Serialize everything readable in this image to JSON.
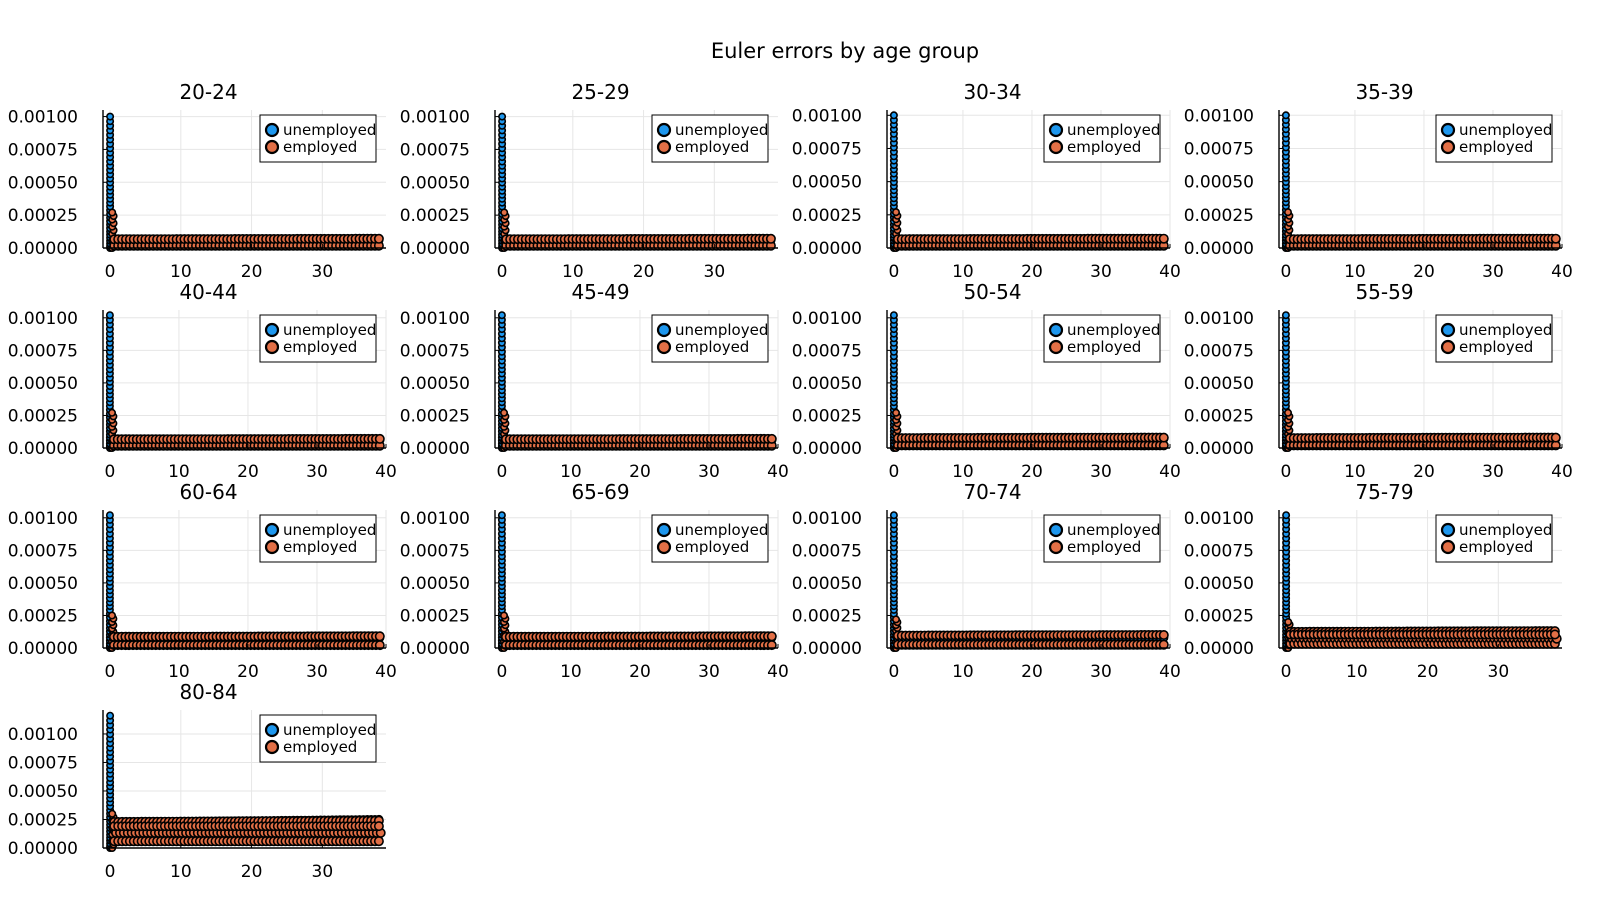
{
  "figure": {
    "title": "Euler errors by age group"
  },
  "colors": {
    "unemployed": "#1e97ee",
    "employed": "#e26f46",
    "axis": "#000000",
    "grid": "#e6e6e6"
  },
  "chart_data": [
    {
      "type": "scatter",
      "title": "20-24",
      "xlim": [
        -1,
        39
      ],
      "xticks": [
        0,
        10,
        20,
        30
      ],
      "ylim": [
        0,
        0.00105
      ],
      "yticks": [
        0,
        0.00025,
        0.0005,
        0.00075,
        0.001
      ],
      "ytick_labels": [
        "0.00000",
        "0.00025",
        "0.00050",
        "0.00075",
        "0.00100"
      ],
      "legend": {
        "position": "top-right",
        "entries": [
          "unemployed",
          "employed"
        ]
      },
      "grid": true,
      "series": [
        {
          "name": "unemployed",
          "x_range": [
            0,
            38.5
          ],
          "near_zero_peak": 0.001,
          "tail_value": 6e-05
        },
        {
          "name": "employed",
          "x_range": [
            0,
            38.5
          ],
          "near_zero_peak": 0.00027,
          "tail_value": 7e-05
        }
      ]
    },
    {
      "type": "scatter",
      "title": "25-29",
      "xlim": [
        -1,
        39
      ],
      "xticks": [
        0,
        10,
        20,
        30
      ],
      "ylim": [
        0,
        0.00105
      ],
      "yticks": [
        0,
        0.00025,
        0.0005,
        0.00075,
        0.001
      ],
      "ytick_labels": [
        "0.00000",
        "0.00025",
        "0.00050",
        "0.00075",
        "0.00100"
      ],
      "legend": {
        "position": "top-right",
        "entries": [
          "unemployed",
          "employed"
        ]
      },
      "grid": true,
      "series": [
        {
          "name": "unemployed",
          "x_range": [
            0,
            38.5
          ],
          "near_zero_peak": 0.001,
          "tail_value": 6e-05
        },
        {
          "name": "employed",
          "x_range": [
            0,
            38.5
          ],
          "near_zero_peak": 0.00027,
          "tail_value": 7e-05
        }
      ]
    },
    {
      "type": "scatter",
      "title": "30-34",
      "xlim": [
        -1,
        40
      ],
      "xticks": [
        0,
        10,
        20,
        30,
        40
      ],
      "ylim": [
        0,
        0.00104
      ],
      "yticks": [
        0,
        0.00025,
        0.0005,
        0.00075,
        0.001
      ],
      "ytick_labels": [
        "0.00000",
        "0.00025",
        "0.00050",
        "0.00075",
        "0.00100"
      ],
      "legend": {
        "position": "top-right",
        "entries": [
          "unemployed",
          "employed"
        ]
      },
      "grid": true,
      "series": [
        {
          "name": "unemployed",
          "x_range": [
            0,
            39.5
          ],
          "near_zero_peak": 0.001,
          "tail_value": 6e-05
        },
        {
          "name": "employed",
          "x_range": [
            0,
            39.5
          ],
          "near_zero_peak": 0.00027,
          "tail_value": 7e-05
        }
      ]
    },
    {
      "type": "scatter",
      "title": "35-39",
      "xlim": [
        -1,
        40
      ],
      "xticks": [
        0,
        10,
        20,
        30,
        40
      ],
      "ylim": [
        0,
        0.00104
      ],
      "yticks": [
        0,
        0.00025,
        0.0005,
        0.00075,
        0.001
      ],
      "ytick_labels": [
        "0.00000",
        "0.00025",
        "0.00050",
        "0.00075",
        "0.00100"
      ],
      "legend": {
        "position": "top-right",
        "entries": [
          "unemployed",
          "employed"
        ]
      },
      "grid": true,
      "series": [
        {
          "name": "unemployed",
          "x_range": [
            0,
            39.5
          ],
          "near_zero_peak": 0.001,
          "tail_value": 6e-05
        },
        {
          "name": "employed",
          "x_range": [
            0,
            39.5
          ],
          "near_zero_peak": 0.00027,
          "tail_value": 7e-05
        }
      ]
    },
    {
      "type": "scatter",
      "title": "40-44",
      "xlim": [
        -1,
        40
      ],
      "xticks": [
        0,
        10,
        20,
        30,
        40
      ],
      "ylim": [
        0,
        0.00106
      ],
      "yticks": [
        0,
        0.00025,
        0.0005,
        0.00075,
        0.001
      ],
      "ytick_labels": [
        "0.00000",
        "0.00025",
        "0.00050",
        "0.00075",
        "0.00100"
      ],
      "legend": {
        "position": "top-right",
        "entries": [
          "unemployed",
          "employed"
        ]
      },
      "grid": true,
      "series": [
        {
          "name": "unemployed",
          "x_range": [
            0,
            39.5
          ],
          "near_zero_peak": 0.00102,
          "tail_value": 6e-05
        },
        {
          "name": "employed",
          "x_range": [
            0,
            39.5
          ],
          "near_zero_peak": 0.00027,
          "tail_value": 7e-05
        }
      ]
    },
    {
      "type": "scatter",
      "title": "45-49",
      "xlim": [
        -1,
        40
      ],
      "xticks": [
        0,
        10,
        20,
        30,
        40
      ],
      "ylim": [
        0,
        0.00106
      ],
      "yticks": [
        0,
        0.00025,
        0.0005,
        0.00075,
        0.001
      ],
      "ytick_labels": [
        "0.00000",
        "0.00025",
        "0.00050",
        "0.00075",
        "0.00100"
      ],
      "legend": {
        "position": "top-right",
        "entries": [
          "unemployed",
          "employed"
        ]
      },
      "grid": true,
      "series": [
        {
          "name": "unemployed",
          "x_range": [
            0,
            39.5
          ],
          "near_zero_peak": 0.00102,
          "tail_value": 6e-05
        },
        {
          "name": "employed",
          "x_range": [
            0,
            39.5
          ],
          "near_zero_peak": 0.00027,
          "tail_value": 7e-05
        }
      ]
    },
    {
      "type": "scatter",
      "title": "50-54",
      "xlim": [
        -1,
        40
      ],
      "xticks": [
        0,
        10,
        20,
        30,
        40
      ],
      "ylim": [
        0,
        0.00106
      ],
      "yticks": [
        0,
        0.00025,
        0.0005,
        0.00075,
        0.001
      ],
      "ytick_labels": [
        "0.00000",
        "0.00025",
        "0.00050",
        "0.00075",
        "0.00100"
      ],
      "legend": {
        "position": "top-right",
        "entries": [
          "unemployed",
          "employed"
        ]
      },
      "grid": true,
      "series": [
        {
          "name": "unemployed",
          "x_range": [
            0,
            39.5
          ],
          "near_zero_peak": 0.00102,
          "tail_value": 7e-05
        },
        {
          "name": "employed",
          "x_range": [
            0,
            39.5
          ],
          "near_zero_peak": 0.00027,
          "tail_value": 8e-05
        }
      ]
    },
    {
      "type": "scatter",
      "title": "55-59",
      "xlim": [
        -1,
        40
      ],
      "xticks": [
        0,
        10,
        20,
        30,
        40
      ],
      "ylim": [
        0,
        0.00106
      ],
      "yticks": [
        0,
        0.00025,
        0.0005,
        0.00075,
        0.001
      ],
      "ytick_labels": [
        "0.00000",
        "0.00025",
        "0.00050",
        "0.00075",
        "0.00100"
      ],
      "legend": {
        "position": "top-right",
        "entries": [
          "unemployed",
          "employed"
        ]
      },
      "grid": true,
      "series": [
        {
          "name": "unemployed",
          "x_range": [
            0,
            39.5
          ],
          "near_zero_peak": 0.00102,
          "tail_value": 7e-05
        },
        {
          "name": "employed",
          "x_range": [
            0,
            39.5
          ],
          "near_zero_peak": 0.00027,
          "tail_value": 8e-05
        }
      ]
    },
    {
      "type": "scatter",
      "title": "60-64",
      "xlim": [
        -1,
        40
      ],
      "xticks": [
        0,
        10,
        20,
        30,
        40
      ],
      "ylim": [
        0,
        0.00106
      ],
      "yticks": [
        0,
        0.00025,
        0.0005,
        0.00075,
        0.001
      ],
      "ytick_labels": [
        "0.00000",
        "0.00025",
        "0.00050",
        "0.00075",
        "0.00100"
      ],
      "legend": {
        "position": "top-right",
        "entries": [
          "unemployed",
          "employed"
        ]
      },
      "grid": true,
      "series": [
        {
          "name": "unemployed",
          "x_range": [
            0,
            39.5
          ],
          "near_zero_peak": 0.00102,
          "tail_value": 8e-05
        },
        {
          "name": "employed",
          "x_range": [
            0,
            39.5
          ],
          "near_zero_peak": 0.00025,
          "tail_value": 9e-05
        }
      ]
    },
    {
      "type": "scatter",
      "title": "65-69",
      "xlim": [
        -1,
        40
      ],
      "xticks": [
        0,
        10,
        20,
        30,
        40
      ],
      "ylim": [
        0,
        0.00106
      ],
      "yticks": [
        0,
        0.00025,
        0.0005,
        0.00075,
        0.001
      ],
      "ytick_labels": [
        "0.00000",
        "0.00025",
        "0.00050",
        "0.00075",
        "0.00100"
      ],
      "legend": {
        "position": "top-right",
        "entries": [
          "unemployed",
          "employed"
        ]
      },
      "grid": true,
      "series": [
        {
          "name": "unemployed",
          "x_range": [
            0,
            39.5
          ],
          "near_zero_peak": 0.00102,
          "tail_value": 8e-05
        },
        {
          "name": "employed",
          "x_range": [
            0,
            39.5
          ],
          "near_zero_peak": 0.00025,
          "tail_value": 9e-05
        }
      ]
    },
    {
      "type": "scatter",
      "title": "70-74",
      "xlim": [
        -1,
        40
      ],
      "xticks": [
        0,
        10,
        20,
        30,
        40
      ],
      "ylim": [
        0,
        0.00106
      ],
      "yticks": [
        0,
        0.00025,
        0.0005,
        0.00075,
        0.001
      ],
      "ytick_labels": [
        "0.00000",
        "0.00025",
        "0.00050",
        "0.00075",
        "0.00100"
      ],
      "legend": {
        "position": "top-right",
        "entries": [
          "unemployed",
          "employed"
        ]
      },
      "grid": true,
      "series": [
        {
          "name": "unemployed",
          "x_range": [
            0,
            39.5
          ],
          "near_zero_peak": 0.00102,
          "tail_value": 8e-05
        },
        {
          "name": "employed",
          "x_range": [
            0,
            39.5
          ],
          "near_zero_peak": 0.00022,
          "tail_value": 0.0001
        }
      ]
    },
    {
      "type": "scatter",
      "title": "75-79",
      "xlim": [
        -1,
        39
      ],
      "xticks": [
        0,
        10,
        20,
        30
      ],
      "ylim": [
        0,
        0.00106
      ],
      "yticks": [
        0,
        0.00025,
        0.0005,
        0.00075,
        0.001
      ],
      "ytick_labels": [
        "0.00000",
        "0.00025",
        "0.00050",
        "0.00075",
        "0.00100"
      ],
      "legend": {
        "position": "top-right",
        "entries": [
          "unemployed",
          "employed"
        ]
      },
      "grid": true,
      "series": [
        {
          "name": "unemployed",
          "x_range": [
            0,
            38.5
          ],
          "near_zero_peak": 0.00102,
          "tail_value": 0.0001
        },
        {
          "name": "employed",
          "x_range": [
            0,
            38.5
          ],
          "near_zero_peak": 0.0002,
          "tail_value": 0.00013
        }
      ]
    },
    {
      "type": "scatter",
      "title": "80-84",
      "xlim": [
        -1,
        39
      ],
      "xticks": [
        0,
        10,
        20,
        30
      ],
      "ylim": [
        0,
        0.00121
      ],
      "yticks": [
        0,
        0.00025,
        0.0005,
        0.00075,
        0.001
      ],
      "ytick_labels": [
        "0.00000",
        "0.00025",
        "0.00050",
        "0.00075",
        "0.00100"
      ],
      "legend": {
        "position": "top-right",
        "entries": [
          "unemployed",
          "employed"
        ]
      },
      "grid": true,
      "series": [
        {
          "name": "unemployed",
          "x_range": [
            0,
            38.5
          ],
          "near_zero_peak": 0.00116,
          "tail_value": 0.00025
        },
        {
          "name": "employed",
          "x_range": [
            0,
            38.5
          ],
          "near_zero_peak": 0.0003,
          "tail_value": 0.00024
        }
      ]
    }
  ]
}
